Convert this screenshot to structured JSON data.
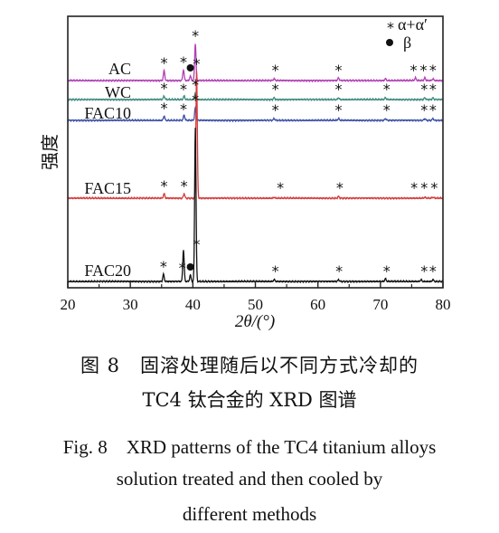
{
  "chart_data": {
    "type": "line",
    "xlabel": "2θ/(°)",
    "ylabel": "强度",
    "xlim": [
      20,
      80
    ],
    "x_ticks": [
      "20",
      "30",
      "40",
      "50",
      "60",
      "70",
      "80"
    ],
    "legend": [
      {
        "marker": "asterisk",
        "label": "α+α′"
      },
      {
        "marker": "dot",
        "label": "β"
      }
    ],
    "series": [
      {
        "name": "AC",
        "color": "#b23fb5",
        "peaks": [
          {
            "x": 35.4,
            "h": 0.11
          },
          {
            "x": 38.5,
            "h": 0.12
          },
          {
            "x": 39.6,
            "h": 0.05
          },
          {
            "x": 40.4,
            "h": 0.41
          },
          {
            "x": 53.0,
            "h": 0.02
          },
          {
            "x": 63.3,
            "h": 0.03
          },
          {
            "x": 70.8,
            "h": 0.02
          },
          {
            "x": 75.6,
            "h": 0.03
          },
          {
            "x": 77.1,
            "h": 0.03
          },
          {
            "x": 78.4,
            "h": 0.02
          }
        ],
        "star_x": [
          35.4,
          38.5,
          40.4,
          53.2,
          63.3,
          75.3,
          76.9,
          78.4
        ],
        "dot_x": [
          39.6
        ]
      },
      {
        "name": "WC",
        "color": "#3f8a82",
        "peaks": [
          {
            "x": 35.4,
            "h": 0.04
          },
          {
            "x": 38.6,
            "h": 0.04
          },
          {
            "x": 40.4,
            "h": 0.08
          },
          {
            "x": 53.0,
            "h": 0.02
          },
          {
            "x": 63.3,
            "h": 0.02
          },
          {
            "x": 70.8,
            "h": 0.02
          },
          {
            "x": 77.1,
            "h": 0.02
          },
          {
            "x": 78.4,
            "h": 0.02
          }
        ],
        "star_x": [
          35.4,
          38.5,
          40.4,
          53.2,
          63.3,
          71.0,
          77.0,
          78.4
        ],
        "dot_x": []
      },
      {
        "name": "FAC10",
        "color": "#3d4fa8",
        "peaks": [
          {
            "x": 35.4,
            "h": 0.05
          },
          {
            "x": 38.6,
            "h": 0.06
          },
          {
            "x": 40.4,
            "h": 0.14
          },
          {
            "x": 53.0,
            "h": 0.02
          },
          {
            "x": 63.3,
            "h": 0.02
          },
          {
            "x": 70.8,
            "h": 0.02
          },
          {
            "x": 77.1,
            "h": 0.02
          },
          {
            "x": 78.4,
            "h": 0.02
          }
        ],
        "star_x": [
          35.4,
          38.5,
          40.4,
          53.2,
          63.3,
          71.0,
          77.0,
          78.4
        ],
        "dot_x": []
      },
      {
        "name": "FAC15",
        "color": "#d63a3a",
        "peaks": [
          {
            "x": 35.4,
            "h": 0.05
          },
          {
            "x": 38.6,
            "h": 0.05
          },
          {
            "x": 40.6,
            "h": 1.4
          },
          {
            "x": 53.0,
            "h": 0.01
          },
          {
            "x": 63.3,
            "h": 0.02
          },
          {
            "x": 77.1,
            "h": 0.01
          },
          {
            "x": 78.4,
            "h": 0.01
          }
        ],
        "star_x": [
          35.4,
          38.6,
          40.6,
          54.0,
          63.5,
          75.4,
          77.0,
          78.6
        ],
        "dot_x": []
      },
      {
        "name": "FAC20",
        "color": "#111111",
        "peaks": [
          {
            "x": 35.3,
            "h": 0.08
          },
          {
            "x": 38.5,
            "h": 0.35
          },
          {
            "x": 39.6,
            "h": 0.07
          },
          {
            "x": 40.4,
            "h": 1.7
          },
          {
            "x": 53.0,
            "h": 0.02
          },
          {
            "x": 63.3,
            "h": 0.02
          },
          {
            "x": 70.8,
            "h": 0.03
          },
          {
            "x": 76.5,
            "h": 0.02
          },
          {
            "x": 78.4,
            "h": 0.02
          }
        ],
        "star_x": [
          35.3,
          38.3,
          40.6,
          53.2,
          63.4,
          71.0,
          77.0,
          78.4
        ],
        "dot_x": [
          39.6
        ]
      }
    ]
  },
  "caption": {
    "cn_line1": "图 8　固溶处理随后以不同方式冷却的",
    "cn_line2": "TC4 钛合金的 XRD 图谱",
    "en_line1": "Fig. 8　XRD patterns of the TC4 titanium alloys",
    "en_line2": "solution treated and then cooled by",
    "en_line3": "different methods"
  }
}
